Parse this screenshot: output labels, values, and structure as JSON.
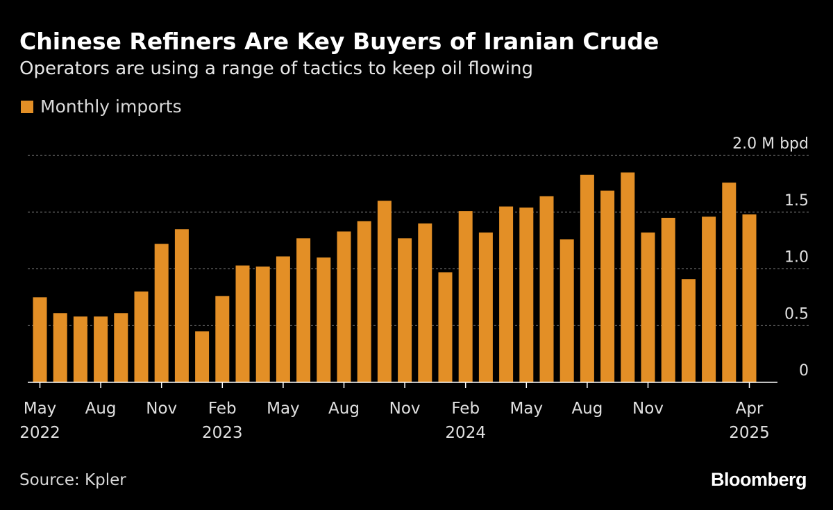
{
  "header": {
    "title": "Chinese Refiners Are Key Buyers of Iranian Crude",
    "subtitle": "Operators are using a range of tactics to keep oil flowing"
  },
  "footer": {
    "source": "Source: Kpler",
    "brand": "Bloomberg"
  },
  "colors": {
    "background": "#000000",
    "bar": "#e38f26",
    "grid": "#8a8a8a",
    "text": "#ffffff"
  },
  "chart_data": {
    "type": "bar",
    "legend": [
      {
        "label": "Monthly imports",
        "color": "#e38f26"
      }
    ],
    "legend_placement": "top-left",
    "grid": true,
    "ylim": [
      0,
      2.0
    ],
    "y_ticks": [
      {
        "value": 0,
        "label": "0"
      },
      {
        "value": 0.5,
        "label": "0.5"
      },
      {
        "value": 1.0,
        "label": "1.0"
      },
      {
        "value": 1.5,
        "label": "1.5"
      },
      {
        "value": 2.0,
        "label": "2.0 M bpd"
      }
    ],
    "x_tick_labels": [
      {
        "index": 0,
        "line1": "May",
        "line2": "2022"
      },
      {
        "index": 3,
        "line1": "Aug",
        "line2": ""
      },
      {
        "index": 6,
        "line1": "Nov",
        "line2": ""
      },
      {
        "index": 9,
        "line1": "Feb",
        "line2": "2023"
      },
      {
        "index": 12,
        "line1": "May",
        "line2": ""
      },
      {
        "index": 15,
        "line1": "Aug",
        "line2": ""
      },
      {
        "index": 18,
        "line1": "Nov",
        "line2": ""
      },
      {
        "index": 21,
        "line1": "Feb",
        "line2": "2024"
      },
      {
        "index": 24,
        "line1": "May",
        "line2": ""
      },
      {
        "index": 27,
        "line1": "Aug",
        "line2": ""
      },
      {
        "index": 30,
        "line1": "Nov",
        "line2": ""
      },
      {
        "index": 35,
        "line1": "Apr",
        "line2": "2025"
      }
    ],
    "categories": [
      "2022-05",
      "2022-06",
      "2022-07",
      "2022-08",
      "2022-09",
      "2022-10",
      "2022-11",
      "2022-12",
      "2023-01",
      "2023-02",
      "2023-03",
      "2023-04",
      "2023-05",
      "2023-06",
      "2023-07",
      "2023-08",
      "2023-09",
      "2023-10",
      "2023-11",
      "2023-12",
      "2024-01",
      "2024-02",
      "2024-03",
      "2024-04",
      "2024-05",
      "2024-06",
      "2024-07",
      "2024-08",
      "2024-09",
      "2024-10",
      "2024-11",
      "2024-12",
      "2025-01",
      "2025-02",
      "2025-03",
      "2025-04"
    ],
    "series": [
      {
        "name": "Monthly imports",
        "values": [
          0.75,
          0.61,
          0.58,
          0.58,
          0.61,
          0.8,
          1.22,
          1.35,
          0.45,
          0.76,
          1.03,
          1.02,
          1.11,
          1.27,
          1.1,
          1.33,
          1.42,
          1.6,
          1.27,
          1.4,
          0.97,
          1.51,
          1.32,
          1.55,
          1.54,
          1.64,
          1.26,
          1.83,
          1.69,
          1.85,
          1.32,
          1.45,
          0.91,
          1.46,
          1.76,
          1.48
        ]
      }
    ]
  }
}
